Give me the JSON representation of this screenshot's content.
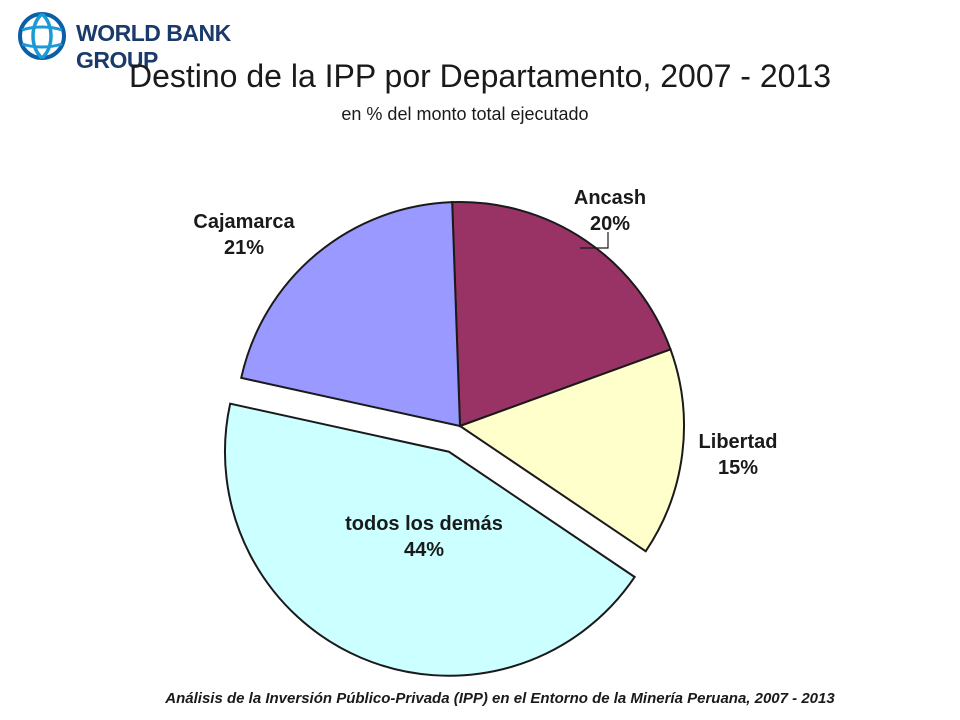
{
  "header": {
    "logo_text": "WORLD BANK GROUP",
    "title": "Destino de la IPP por Departamento, 2007 - 2013",
    "subtitle": "en % del monto total ejecutado"
  },
  "chart_data": {
    "type": "pie",
    "title": "Destino de la IPP por Departamento, 2007 - 2013",
    "subtitle": "en % del monto total ejecutado",
    "unit": "%",
    "slices": [
      {
        "name": "Ancash",
        "value": 20,
        "label": "20%",
        "color": "#993366"
      },
      {
        "name": "Libertad",
        "value": 15,
        "label": "15%",
        "color": "#ffffcc"
      },
      {
        "name": "todos los demás",
        "value": 44,
        "label": "44%",
        "color": "#ccffff",
        "exploded": true
      },
      {
        "name": "Cajamarca",
        "value": 21,
        "label": "21%",
        "color": "#9999ff"
      }
    ]
  },
  "footer": {
    "text": "Análisis de la Inversión Público-Privada (IPP) en el Entorno de la Minería Peruana, 2007 - 2013"
  }
}
